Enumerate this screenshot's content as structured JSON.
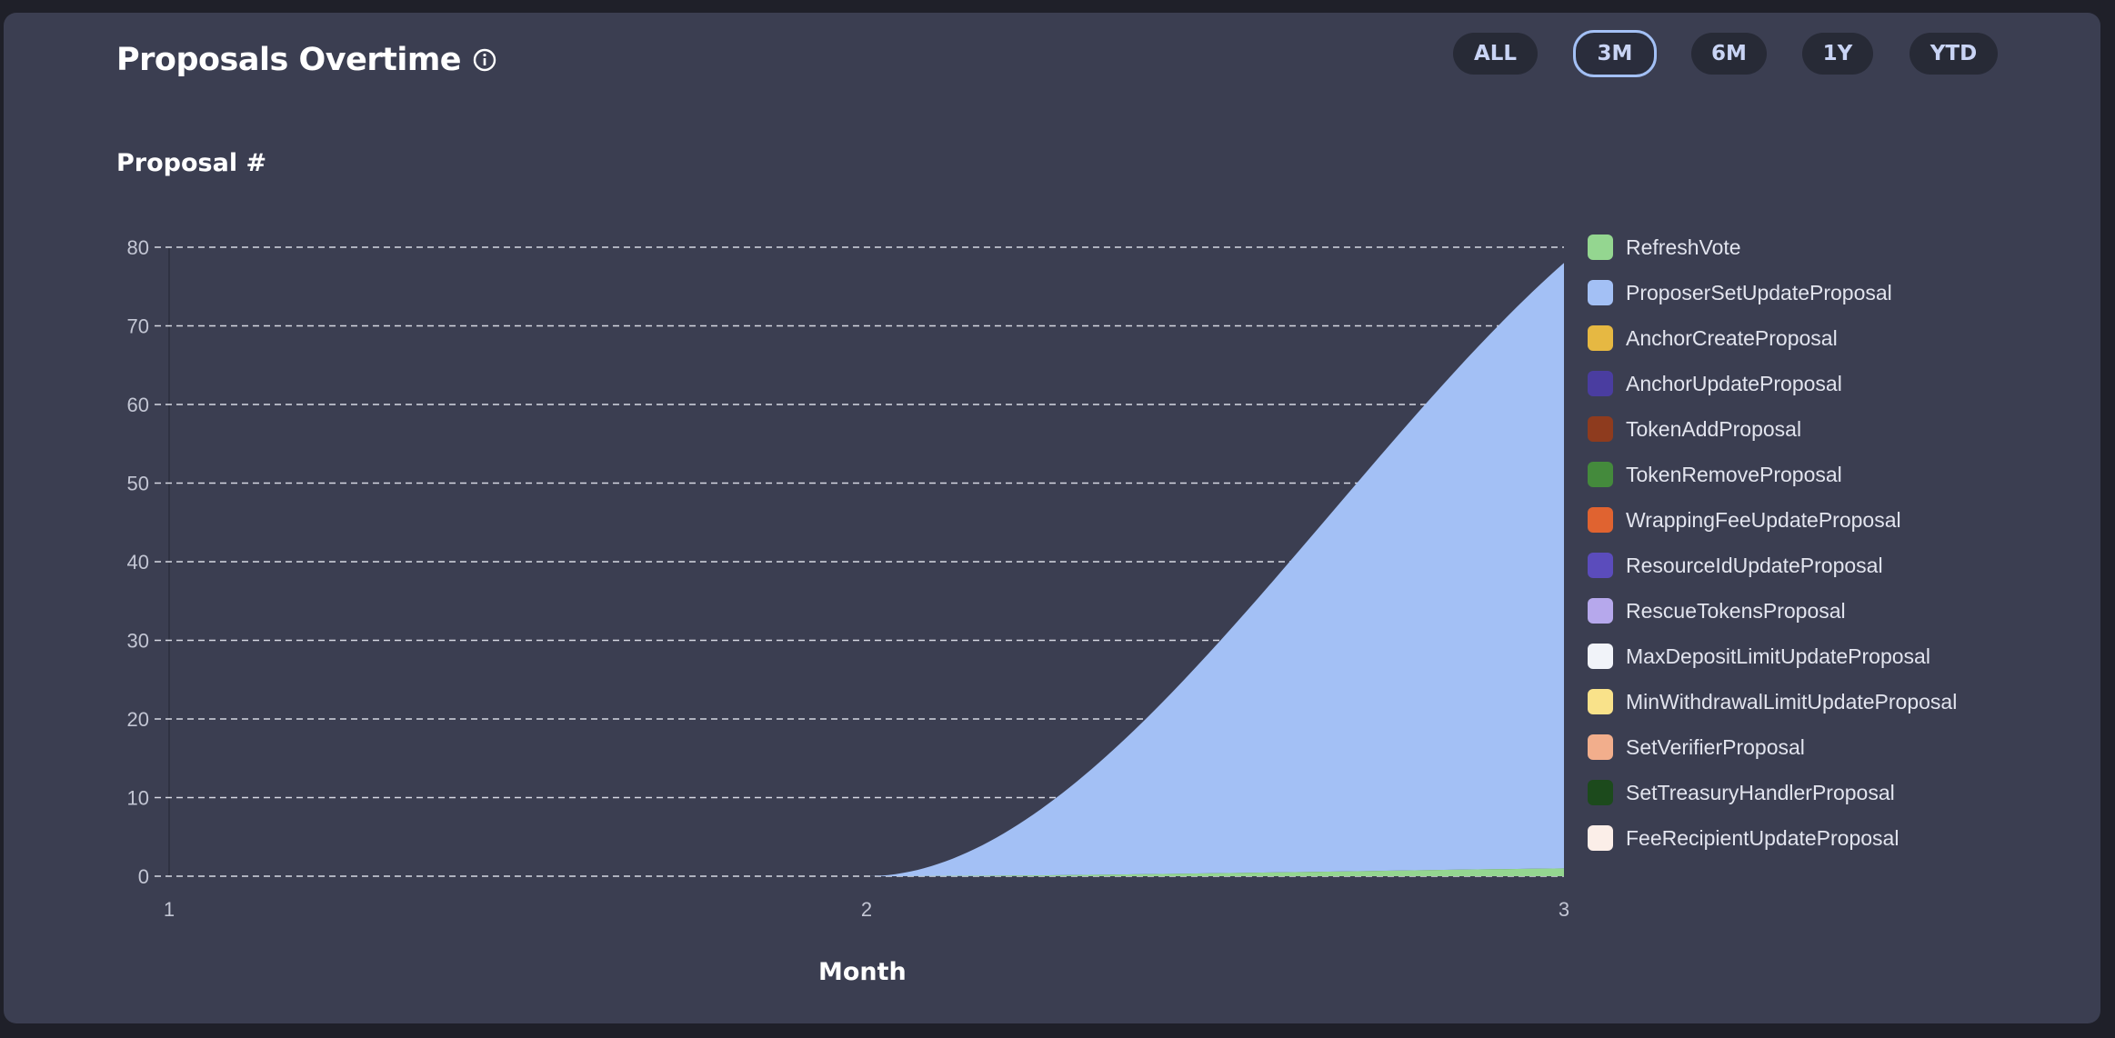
{
  "header": {
    "title": "Proposals Overtime",
    "info_icon": "info-circle-icon",
    "ranges": [
      {
        "label": "ALL",
        "active": false
      },
      {
        "label": "3M",
        "active": true
      },
      {
        "label": "6M",
        "active": false
      },
      {
        "label": "1Y",
        "active": false
      },
      {
        "label": "YTD",
        "active": false
      }
    ]
  },
  "colors": {
    "background": "#3b3e51",
    "grid": "#d6d8e2",
    "axis_text": "#c3c6d4"
  },
  "chart_data": {
    "type": "area",
    "stacked": true,
    "ylabel": "Proposal #",
    "xlabel": "Month",
    "x": [
      1,
      2,
      3
    ],
    "xticks": [
      "1",
      "2",
      "3"
    ],
    "ylim": [
      0,
      80
    ],
    "yticks": [
      0,
      10,
      20,
      30,
      40,
      50,
      60,
      70,
      80
    ],
    "grid": true,
    "legend_position": "right",
    "series": [
      {
        "name": "RefreshVote",
        "color": "#94d690",
        "values": [
          0,
          0,
          1
        ]
      },
      {
        "name": "ProposerSetUpdateProposal",
        "color": "#a3c0f5",
        "values": [
          0,
          0,
          77
        ]
      },
      {
        "name": "AnchorCreateProposal",
        "color": "#e6b842",
        "values": [
          0,
          0,
          0
        ]
      },
      {
        "name": "AnchorUpdateProposal",
        "color": "#4a3da0",
        "values": [
          0,
          0,
          0
        ]
      },
      {
        "name": "TokenAddProposal",
        "color": "#8e3b1e",
        "values": [
          0,
          0,
          0
        ]
      },
      {
        "name": "TokenRemoveProposal",
        "color": "#448a3c",
        "values": [
          0,
          0,
          0
        ]
      },
      {
        "name": "WrappingFeeUpdateProposal",
        "color": "#e06330",
        "values": [
          0,
          0,
          0
        ]
      },
      {
        "name": "ResourceIdUpdateProposal",
        "color": "#5b4cbc",
        "values": [
          0,
          0,
          0
        ]
      },
      {
        "name": "RescueTokensProposal",
        "color": "#b6a8ec",
        "values": [
          0,
          0,
          0
        ]
      },
      {
        "name": "MaxDepositLimitUpdateProposal",
        "color": "#f1f3f9",
        "values": [
          0,
          0,
          0
        ]
      },
      {
        "name": "MinWithdrawalLimitUpdateProposal",
        "color": "#f9e28a",
        "values": [
          0,
          0,
          0
        ]
      },
      {
        "name": "SetVerifierProposal",
        "color": "#f2ae8c",
        "values": [
          0,
          0,
          0
        ]
      },
      {
        "name": "SetTreasuryHandlerProposal",
        "color": "#1c4a1c",
        "values": [
          0,
          0,
          0
        ]
      },
      {
        "name": "FeeRecipientUpdateProposal",
        "color": "#fbeee8",
        "values": [
          0,
          0,
          0
        ]
      }
    ]
  }
}
